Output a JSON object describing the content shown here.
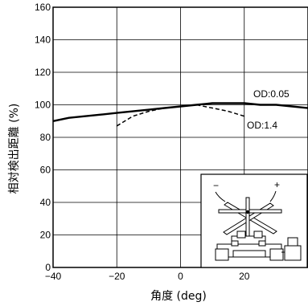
{
  "chart_data": {
    "type": "line",
    "xlabel": "角度 (deg)",
    "ylabel": "相対検出距離 (%)",
    "xlim": [
      -40,
      40
    ],
    "ylim": [
      0,
      160
    ],
    "x_ticks": [
      -40,
      -20,
      0,
      20,
      40
    ],
    "y_ticks": [
      0,
      20,
      40,
      60,
      80,
      100,
      120,
      140,
      160
    ],
    "x_tick_labels": [
      "−40",
      "−20",
      "0",
      "20",
      "40"
    ],
    "y_tick_labels": [
      "0",
      "20",
      "40",
      "60",
      "80",
      "100",
      "120",
      "140",
      "160"
    ],
    "grid": true,
    "series": [
      {
        "name": "OD:0.05",
        "style": "solid",
        "x": [
          -40,
          -35,
          -30,
          -25,
          -20,
          -15,
          -10,
          -5,
          0,
          5,
          10,
          15,
          20,
          25,
          30,
          35,
          40
        ],
        "y": [
          90,
          92,
          93,
          94,
          95,
          96,
          97,
          98,
          99,
          100,
          101,
          101,
          101,
          100,
          100,
          99,
          98
        ]
      },
      {
        "name": "OD:1.4",
        "style": "dashed",
        "x": [
          -20,
          -15,
          -10,
          -5,
          0,
          5,
          10,
          15,
          20
        ],
        "y": [
          87,
          93,
          96,
          98,
          99,
          100,
          98,
          96,
          93
        ]
      }
    ]
  },
  "inset": {
    "minus_label": "−",
    "plus_label": "+"
  }
}
